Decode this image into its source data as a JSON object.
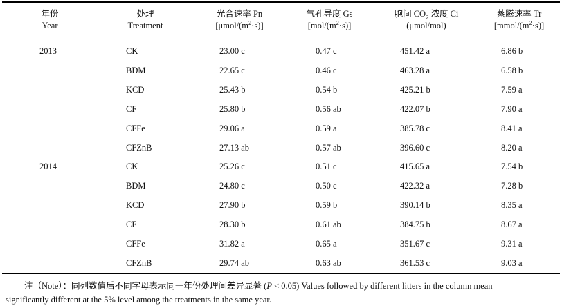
{
  "headers": {
    "year": {
      "cn": "年份",
      "en": "Year"
    },
    "treatment": {
      "cn": "处理",
      "en": "Treatment"
    },
    "pn": {
      "cn": "光合速率 Pn",
      "unit_pre": "[μmol/(m",
      "unit_sup": "2",
      "unit_post": "·s)]"
    },
    "gs": {
      "cn": "气孔导度 Gs",
      "unit_pre": "[mol/(m",
      "unit_sup": "2",
      "unit_post": "·s)]"
    },
    "ci": {
      "cn_pre": "胞间 CO",
      "cn_sub": "2",
      "cn_post": " 浓度 Ci",
      "unit": "(μmol/mol)"
    },
    "tr": {
      "cn": "蒸腾速率 Tr",
      "unit_pre": "[mmol/(m",
      "unit_sup": "2",
      "unit_post": "·s)]"
    }
  },
  "rows": [
    {
      "year": "2013",
      "treatment": "CK",
      "pn": "23.00 c",
      "gs": "0.47 c",
      "ci": "451.42 a",
      "tr": "6.86 b"
    },
    {
      "year": "",
      "treatment": "BDM",
      "pn": "22.65 c",
      "gs": "0.46 c",
      "ci": "463.28 a",
      "tr": "6.58 b"
    },
    {
      "year": "",
      "treatment": "KCD",
      "pn": "25.43 b",
      "gs": "0.54 b",
      "ci": "425.21 b",
      "tr": "7.59 a"
    },
    {
      "year": "",
      "treatment": "CF",
      "pn": "25.80 b",
      "gs": "0.56 ab",
      "ci": "422.07 b",
      "tr": "7.90 a"
    },
    {
      "year": "",
      "treatment": "CFFe",
      "pn": "29.06 a",
      "gs": "0.59 a",
      "ci": "385.78 c",
      "tr": "8.41 a"
    },
    {
      "year": "",
      "treatment": "CFZnB",
      "pn": "27.13 ab",
      "gs": "0.57 ab",
      "ci": "396.60 c",
      "tr": "8.20 a"
    },
    {
      "year": "2014",
      "treatment": "CK",
      "pn": "25.26 c",
      "gs": "0.51 c",
      "ci": "415.65 a",
      "tr": "7.54 b"
    },
    {
      "year": "",
      "treatment": "BDM",
      "pn": "24.80 c",
      "gs": "0.50 c",
      "ci": "422.32 a",
      "tr": "7.28 b"
    },
    {
      "year": "",
      "treatment": "KCD",
      "pn": "27.90 b",
      "gs": "0.59 b",
      "ci": "390.14 b",
      "tr": "8.35 a"
    },
    {
      "year": "",
      "treatment": "CF",
      "pn": "28.30 b",
      "gs": "0.61 ab",
      "ci": "384.75 b",
      "tr": "8.67 a"
    },
    {
      "year": "",
      "treatment": "CFFe",
      "pn": "31.82 a",
      "gs": "0.65 a",
      "ci": "351.67 c",
      "tr": "9.31 a"
    },
    {
      "year": "",
      "treatment": "CFZnB",
      "pn": "29.74 ab",
      "gs": "0.63 ab",
      "ci": "361.53 c",
      "tr": "9.03 a"
    }
  ],
  "note": {
    "prefix": "注（Note）：同列数值后不同字母表示同一年份处理间差异显著 (",
    "p": "P",
    "threshold": " < 0.05) Values followed by different litters in the column mean",
    "line2": "significantly different at the 5% level among the treatments in the same year."
  }
}
